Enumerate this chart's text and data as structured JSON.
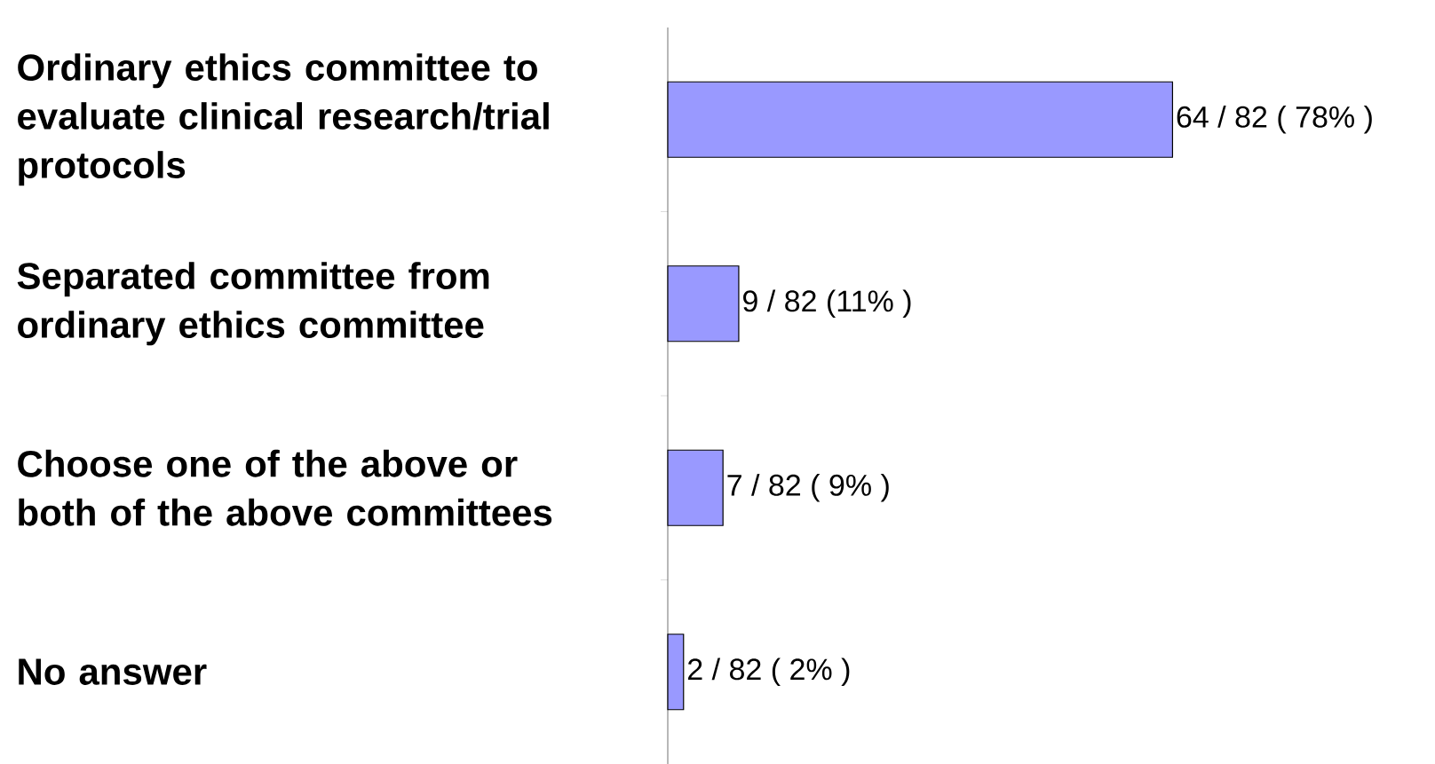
{
  "chart_data": {
    "type": "bar",
    "orientation": "horizontal",
    "categories": [
      "Ordinary ethics committee to evaluate clinical research/trial protocols",
      "Separated committee from ordinary ethics committee",
      "Choose one of the above or both of the above committees",
      "No answer"
    ],
    "values": [
      64,
      9,
      7,
      2
    ],
    "value_labels": [
      "64 / 82 ( 78% )",
      "9 / 82 (11% )",
      "7 / 82 ( 9% )",
      "2 / 82 ( 2% )"
    ],
    "color": "#9999ff"
  }
}
